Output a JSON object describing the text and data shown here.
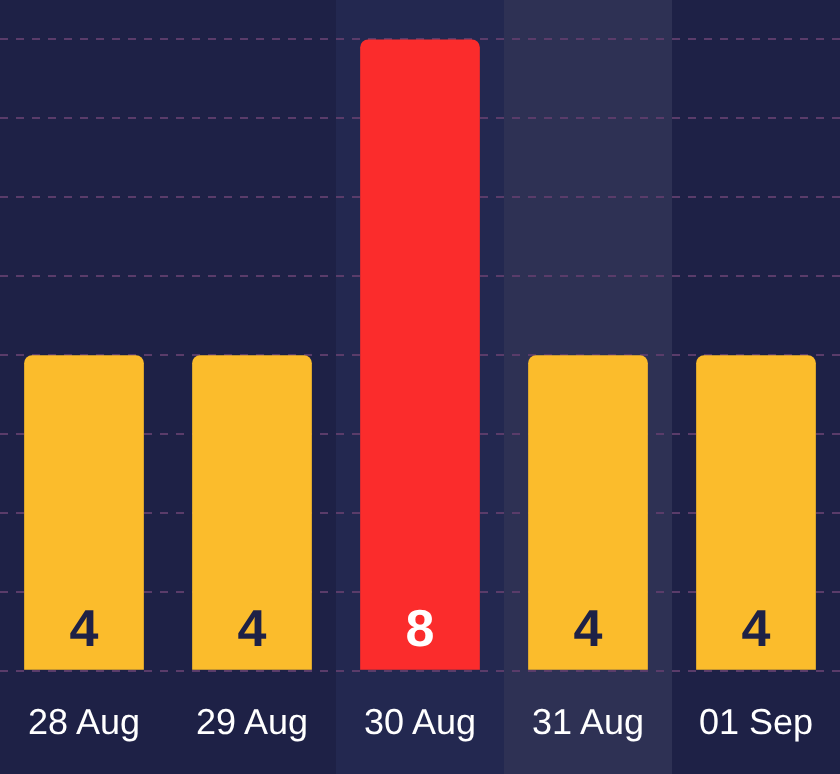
{
  "chart_data": {
    "type": "bar",
    "categories": [
      "28 Aug",
      "29 Aug",
      "30 Aug",
      "31 Aug",
      "01 Sep"
    ],
    "values": [
      4,
      4,
      8,
      4,
      4
    ],
    "colors": [
      "#fbbc2c",
      "#fbbc2c",
      "#fb2c2c",
      "#fbbc2c",
      "#fbbc2c"
    ],
    "bands": [
      {
        "axis": "x",
        "from": "30 Aug",
        "to": "30 Aug",
        "color": "#232850"
      },
      {
        "axis": "x",
        "from": "31 Aug",
        "to": "31 Aug",
        "color": "#2e3154"
      }
    ],
    "ylim": [
      0,
      8.5
    ],
    "yticks": [
      {
        "value": 0,
        "label": null
      },
      {
        "value": 1,
        "label": null
      },
      {
        "value": 2,
        "label": null
      },
      {
        "value": 3,
        "label": null
      },
      {
        "value": 4,
        "label": null
      },
      {
        "value": 5,
        "label": null
      },
      {
        "value": 6,
        "label": null
      },
      {
        "value": 7,
        "label": null
      },
      {
        "value": 8,
        "label": null
      }
    ],
    "data_labels": true,
    "grid": "y",
    "tick_labels": "x",
    "legend": false
  }
}
